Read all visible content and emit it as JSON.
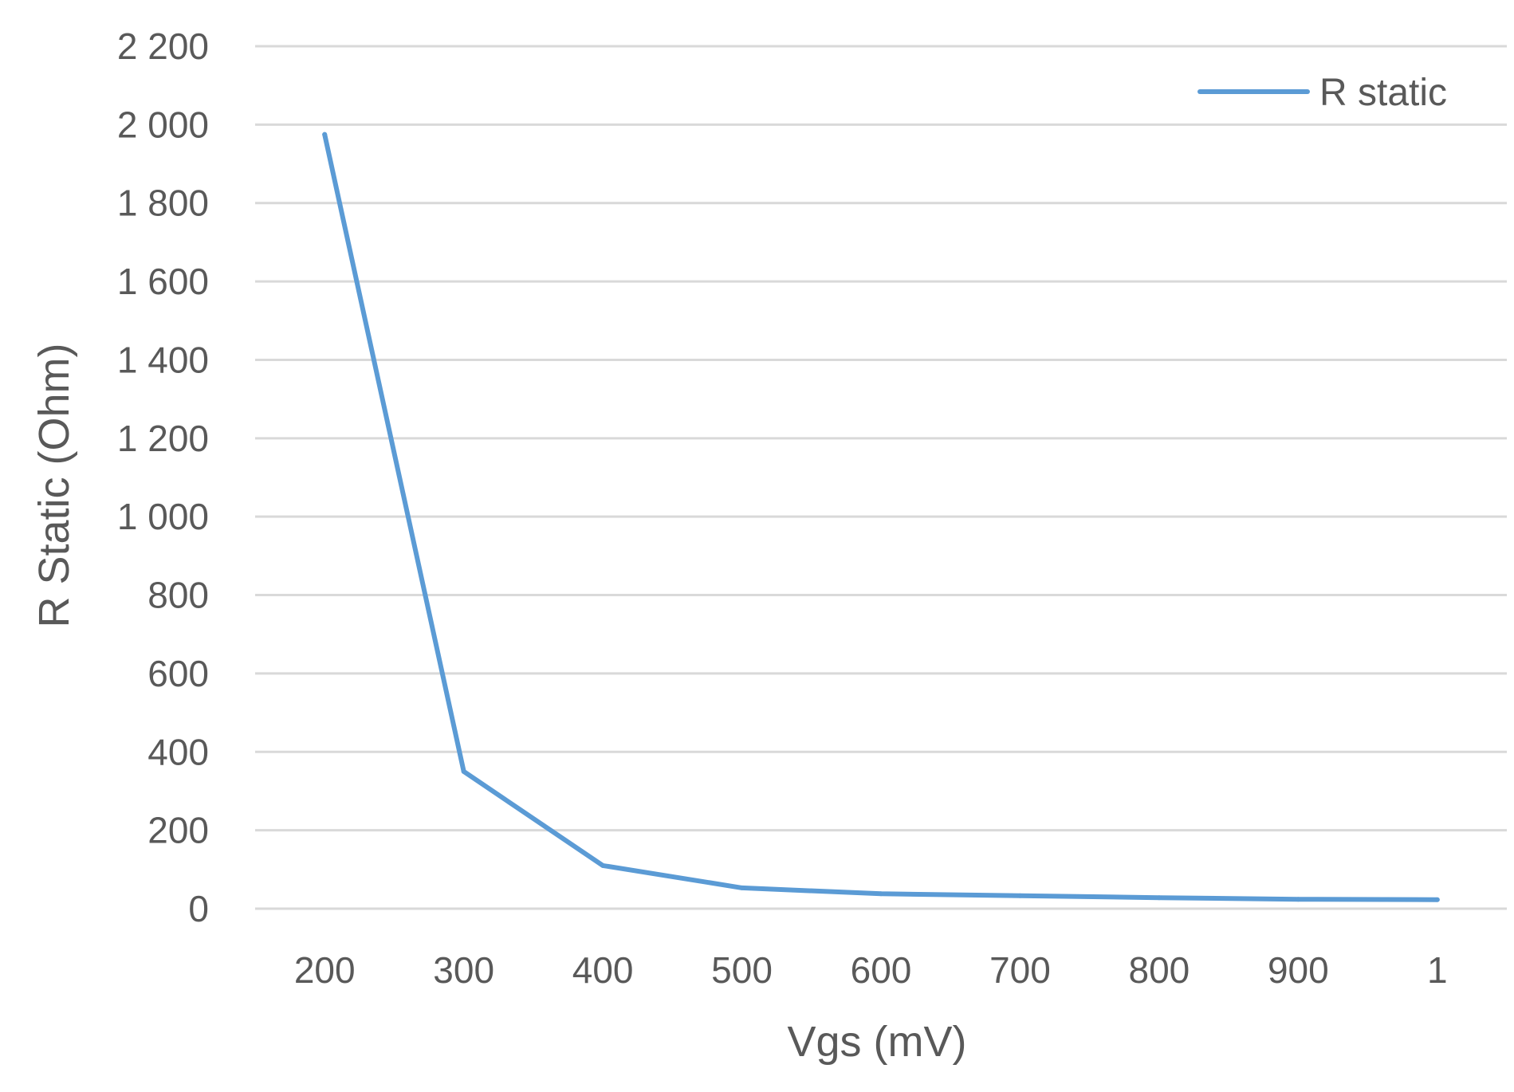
{
  "chart_data": {
    "type": "line",
    "categories": [
      "200",
      "300",
      "400",
      "500",
      "600",
      "700",
      "800",
      "900",
      "1"
    ],
    "series": [
      {
        "name": "R static",
        "color": "#5b9bd5",
        "values": [
          1975,
          350,
          110,
          53,
          38,
          33,
          28,
          24,
          23
        ]
      }
    ],
    "xlabel": "Vgs (mV)",
    "ylabel": "R Static  (Ohm)",
    "ylim": [
      0,
      2200
    ],
    "yticks": [
      0,
      200,
      400,
      600,
      800,
      1000,
      1200,
      1400,
      1600,
      1800,
      2000,
      2200
    ],
    "ytick_labels": [
      "0",
      "200",
      "400",
      "600",
      "800",
      "1 000",
      "1 200",
      "1 400",
      "1 600",
      "1 800",
      "2 000",
      "2 200"
    ],
    "grid": true,
    "gridline_color": "#d9d9d9",
    "legend_position": "top-right"
  }
}
